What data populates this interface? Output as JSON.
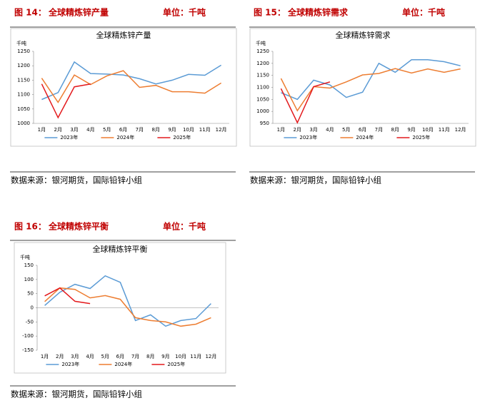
{
  "figures": [
    {
      "label": "图 14：",
      "title": "全球精炼锌产量",
      "unit": "单位：千吨",
      "source": "数据来源：银河期货，国际铅锌小组"
    },
    {
      "label": "图 15：",
      "title": "全球精炼锌需求",
      "unit": "单位：千吨",
      "source": "数据来源：银河期货，国际铅锌小组"
    },
    {
      "label": "图 16：",
      "title": "全球精炼锌平衡",
      "unit": "单位：千吨",
      "source": "数据来源：银河期货，国际铅锌小组"
    }
  ],
  "chart_data": [
    {
      "type": "line",
      "title": "全球精炼锌产量",
      "y_unit": "千吨",
      "categories": [
        "1月",
        "2月",
        "3月",
        "4月",
        "5月",
        "6月",
        "7月",
        "8月",
        "9月",
        "10月",
        "11月",
        "12月"
      ],
      "series": [
        {
          "name": "2023年",
          "color": "#5b9bd5",
          "values": [
            1083,
            1107,
            1213,
            1173,
            1171,
            1168,
            1155,
            1137,
            1150,
            1170,
            1167,
            1202
          ]
        },
        {
          "name": "2024年",
          "color": "#ed7d31",
          "values": [
            1157,
            1073,
            1168,
            1135,
            1165,
            1183,
            1125,
            1132,
            1110,
            1110,
            1105,
            1140
          ]
        },
        {
          "name": "2025年",
          "color": "#e3191c",
          "values": [
            1137,
            1020,
            1127,
            1137,
            null,
            null,
            null,
            null,
            null,
            null,
            null,
            null
          ]
        }
      ],
      "ylim": [
        1000,
        1250
      ],
      "yticks": [
        1000,
        1050,
        1100,
        1150,
        1200,
        1250
      ]
    },
    {
      "type": "line",
      "title": "全球精炼锌需求",
      "y_unit": "千吨",
      "categories": [
        "1月",
        "2月",
        "3月",
        "4月",
        "5月",
        "6月",
        "7月",
        "8月",
        "9月",
        "10月",
        "11月",
        "12月"
      ],
      "series": [
        {
          "name": "2023年",
          "color": "#5b9bd5",
          "values": [
            1078,
            1050,
            1130,
            1110,
            1058,
            1080,
            1200,
            1163,
            1215,
            1215,
            1207,
            1190
          ]
        },
        {
          "name": "2024年",
          "color": "#ed7d31",
          "values": [
            1137,
            1003,
            1103,
            1097,
            1123,
            1152,
            1158,
            1178,
            1160,
            1177,
            1163,
            1177
          ]
        },
        {
          "name": "2025年",
          "color": "#e3191c",
          "values": [
            1095,
            953,
            1103,
            1123,
            null,
            null,
            null,
            null,
            null,
            null,
            null,
            null
          ]
        }
      ],
      "ylim": [
        950,
        1250
      ],
      "yticks": [
        950,
        1000,
        1050,
        1100,
        1150,
        1200,
        1250
      ]
    },
    {
      "type": "line",
      "title": "全球精炼锌平衡",
      "y_unit": "千吨",
      "categories": [
        "1月",
        "2月",
        "3月",
        "4月",
        "5月",
        "6月",
        "7月",
        "8月",
        "9月",
        "10月",
        "11月",
        "12月"
      ],
      "series": [
        {
          "name": "2023年",
          "color": "#5b9bd5",
          "values": [
            8,
            55,
            83,
            68,
            113,
            90,
            -45,
            -25,
            -65,
            -45,
            -38,
            15
          ]
        },
        {
          "name": "2024年",
          "color": "#ed7d31",
          "values": [
            22,
            70,
            65,
            35,
            43,
            30,
            -35,
            -45,
            -50,
            -65,
            -58,
            -35
          ]
        },
        {
          "name": "2025年",
          "color": "#e3191c",
          "values": [
            42,
            70,
            23,
            15,
            null,
            null,
            null,
            null,
            null,
            null,
            null,
            null
          ]
        }
      ],
      "ylim": [
        -150,
        150
      ],
      "yticks": [
        -150,
        -100,
        -50,
        0,
        50,
        100,
        150
      ]
    }
  ]
}
